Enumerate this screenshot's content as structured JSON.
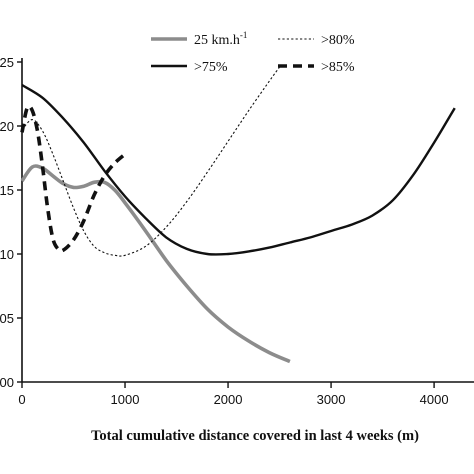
{
  "chart_data": {
    "type": "line",
    "xlabel": "Total cumulative distance covered in last 4 weeks (m)",
    "ylabel": "",
    "xlim": [
      0,
      4300
    ],
    "ylim": [
      0.0,
      0.25
    ],
    "x_ticks": [
      0,
      1000,
      2000,
      3000,
      4000
    ],
    "x_tick_labels": [
      "0",
      "1000",
      "2000",
      "3000",
      "4000"
    ],
    "y_ticks": [
      0.0,
      0.05,
      0.1,
      0.15,
      0.2,
      0.25
    ],
    "y_tick_labels": [
      "00",
      "05",
      "10",
      "15",
      "20",
      "25"
    ],
    "grid": false,
    "legend_position": "top",
    "series": [
      {
        "name": "25 km.h",
        "name_superscript": "-1",
        "color": "#8c8c8c",
        "style": "solid-thick",
        "x": [
          0,
          100,
          200,
          300,
          400,
          500,
          600,
          700,
          800,
          900,
          1000,
          1200,
          1400,
          1600,
          1800,
          2000,
          2200,
          2400,
          2600
        ],
        "y": [
          0.157,
          0.168,
          0.167,
          0.161,
          0.155,
          0.152,
          0.153,
          0.156,
          0.156,
          0.15,
          0.14,
          0.118,
          0.095,
          0.075,
          0.057,
          0.043,
          0.032,
          0.023,
          0.016
        ]
      },
      {
        "name": ">80%",
        "color": "#111111",
        "style": "dotted-thin",
        "x": [
          0,
          100,
          200,
          300,
          400,
          500,
          600,
          700,
          800,
          900,
          1000,
          1200,
          1400,
          1600,
          1800,
          2000,
          2200,
          2400,
          2500
        ],
        "y": [
          0.197,
          0.205,
          0.196,
          0.178,
          0.157,
          0.136,
          0.118,
          0.106,
          0.101,
          0.099,
          0.099,
          0.106,
          0.121,
          0.141,
          0.164,
          0.188,
          0.212,
          0.235,
          0.246
        ]
      },
      {
        "name": ">75%",
        "color": "#111111",
        "style": "solid",
        "x": [
          0,
          200,
          400,
          600,
          800,
          1000,
          1200,
          1400,
          1600,
          1800,
          2000,
          2200,
          2400,
          2600,
          2800,
          3000,
          3200,
          3400,
          3600,
          3800,
          4000,
          4200
        ],
        "y": [
          0.232,
          0.222,
          0.206,
          0.187,
          0.165,
          0.145,
          0.128,
          0.113,
          0.104,
          0.1,
          0.1,
          0.102,
          0.105,
          0.109,
          0.113,
          0.118,
          0.123,
          0.13,
          0.142,
          0.162,
          0.187,
          0.214
        ]
      },
      {
        "name": ">85%",
        "color": "#111111",
        "style": "dashed-thick",
        "x": [
          0,
          50,
          100,
          150,
          200,
          250,
          300,
          350,
          400,
          500,
          600,
          700,
          800,
          900,
          1000
        ],
        "y": [
          0.195,
          0.214,
          0.212,
          0.196,
          0.168,
          0.135,
          0.112,
          0.104,
          0.103,
          0.111,
          0.126,
          0.146,
          0.161,
          0.171,
          0.178
        ]
      }
    ]
  }
}
